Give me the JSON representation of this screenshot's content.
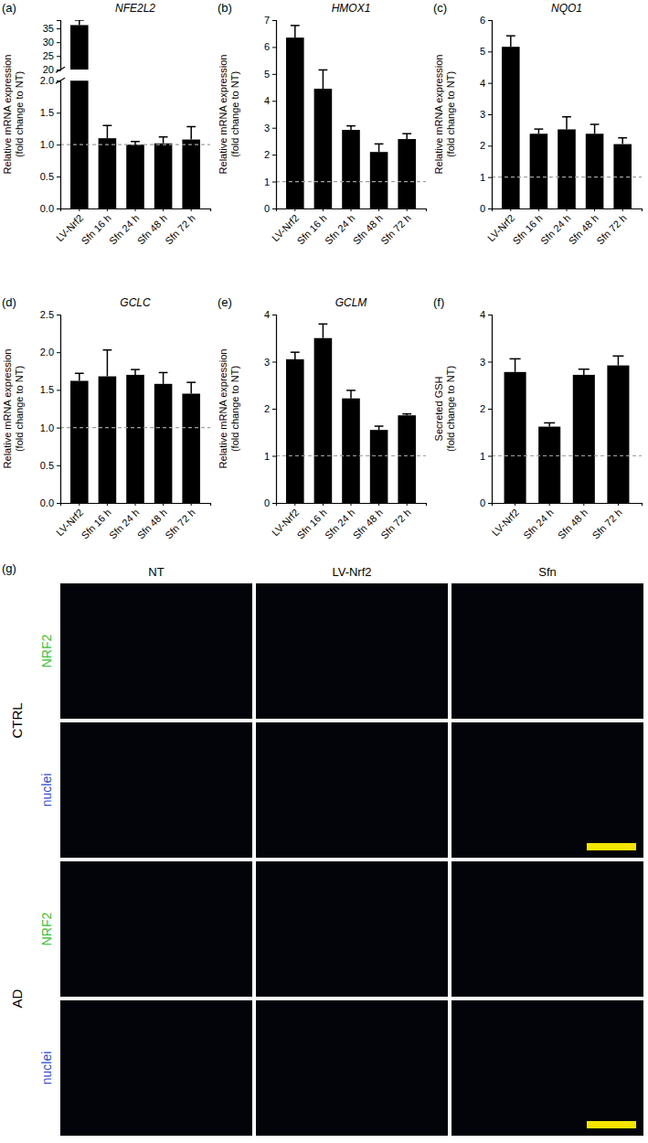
{
  "chart_data": [
    {
      "type": "bar",
      "panel": "(a)",
      "title": "NFE2L2",
      "ylabel": [
        "Relative mRNA expression",
        "(fold change to NT)"
      ],
      "categories": [
        "LV-Nrf2",
        "Sfn 16 h",
        "Sfn 24 h",
        "Sfn 48 h",
        "Sfn 72 h"
      ],
      "values": [
        36.2,
        1.1,
        1.0,
        1.02,
        1.08
      ],
      "errors": [
        1.8,
        0.2,
        0.05,
        0.1,
        0.2
      ],
      "color": "#000000",
      "reference": 1,
      "y_segments": [
        {
          "ylim": [
            0,
            2
          ],
          "yticks": [
            {
              "value": 0,
              "label": "0.0"
            },
            {
              "value": 0.5,
              "label": "0.5"
            },
            {
              "value": 1,
              "label": "1.0"
            },
            {
              "value": 1.5,
              "label": "1.5"
            },
            {
              "value": 2,
              "label": "2.0"
            }
          ]
        },
        {
          "ylim": [
            20,
            38
          ],
          "yticks": [
            20,
            25,
            30,
            35
          ]
        }
      ]
    },
    {
      "type": "bar",
      "panel": "(b)",
      "title": "HMOX1",
      "ylabel": [
        "Relative mRNA expression",
        "(fold change to NT)"
      ],
      "categories": [
        "LV-Nrf2",
        "Sfn 16 h",
        "Sfn 24 h",
        "Sfn 48 h",
        "Sfn 72 h"
      ],
      "values": [
        6.35,
        4.45,
        2.92,
        2.1,
        2.58
      ],
      "errors": [
        0.45,
        0.7,
        0.15,
        0.3,
        0.2
      ],
      "color": "#000000",
      "reference": 1,
      "ylim": [
        0,
        7
      ],
      "yticks": [
        0,
        1,
        2,
        3,
        4,
        5,
        6,
        7
      ]
    },
    {
      "type": "bar",
      "panel": "(c)",
      "title": "NQO1",
      "ylabel": [
        "Relative mRNA expression",
        "(fold change to NT)"
      ],
      "categories": [
        "LV-Nrf2",
        "Sfn 16 h",
        "Sfn 24 h",
        "Sfn 48 h",
        "Sfn 72 h"
      ],
      "values": [
        5.15,
        2.38,
        2.52,
        2.38,
        2.05
      ],
      "errors": [
        0.35,
        0.15,
        0.4,
        0.3,
        0.2
      ],
      "color": "#000000",
      "reference": 1,
      "ylim": [
        0,
        6
      ],
      "yticks": [
        0,
        1,
        2,
        3,
        4,
        5,
        6
      ]
    },
    {
      "type": "bar",
      "panel": "(d)",
      "title": "GCLC",
      "ylabel": [
        "Relative mRNA expression",
        "(fold change to NT)"
      ],
      "categories": [
        "LV-Nrf2",
        "Sfn 16 h",
        "Sfn 24 h",
        "Sfn 48 h",
        "Sfn 72 h"
      ],
      "values": [
        1.62,
        1.68,
        1.7,
        1.58,
        1.45
      ],
      "errors": [
        0.1,
        0.35,
        0.07,
        0.15,
        0.15
      ],
      "color": "#000000",
      "reference": 1,
      "ylim": [
        0,
        2.5
      ],
      "yticks": [
        {
          "value": 0,
          "label": "0.0"
        },
        {
          "value": 0.5,
          "label": "0.5"
        },
        {
          "value": 1,
          "label": "1.0"
        },
        {
          "value": 1.5,
          "label": "1.5"
        },
        {
          "value": 2,
          "label": "2.0"
        },
        {
          "value": 2.5,
          "label": "2.5"
        }
      ]
    },
    {
      "type": "bar",
      "panel": "(e)",
      "title": "GCLM",
      "ylabel": [
        "Relative mRNA expression",
        "(fold change to NT)"
      ],
      "categories": [
        "LV-Nrf2",
        "Sfn 16 h",
        "Sfn 24 h",
        "Sfn 48 h",
        "Sfn 72 h"
      ],
      "values": [
        3.05,
        3.5,
        2.22,
        1.55,
        1.86
      ],
      "errors": [
        0.15,
        0.3,
        0.17,
        0.08,
        0.03
      ],
      "color": "#000000",
      "reference": 1,
      "ylim": [
        0,
        4
      ],
      "yticks": [
        0,
        1,
        2,
        3,
        4
      ]
    },
    {
      "type": "bar",
      "panel": "(f)",
      "ylabel": [
        "Secreted GSH",
        "(fold change to NT)"
      ],
      "categories": [
        "LV-Nrf2",
        "Sfn 24 h",
        "Sfn 48 h",
        "Sfn 72 h"
      ],
      "values": [
        2.78,
        1.62,
        2.72,
        2.92
      ],
      "errors": [
        0.28,
        0.08,
        0.12,
        0.2
      ],
      "color": "#000000",
      "reference": 1,
      "ylim": [
        0,
        4
      ],
      "yticks": [
        0,
        1,
        2,
        3,
        4
      ]
    }
  ],
  "image_panel": {
    "panel": "(g)",
    "columns": [
      "NT",
      "LV-Nrf2",
      "Sfn"
    ],
    "groups": [
      {
        "name": "CTRL",
        "rows": [
          {
            "name": "NRF2",
            "color": "#33c533"
          },
          {
            "name": "nuclei",
            "color": "#2f4fe0"
          }
        ]
      },
      {
        "name": "AD",
        "rows": [
          {
            "name": "NRF2",
            "color": "#33c533"
          },
          {
            "name": "nuclei",
            "color": "#2f4fe0"
          }
        ]
      }
    ]
  }
}
